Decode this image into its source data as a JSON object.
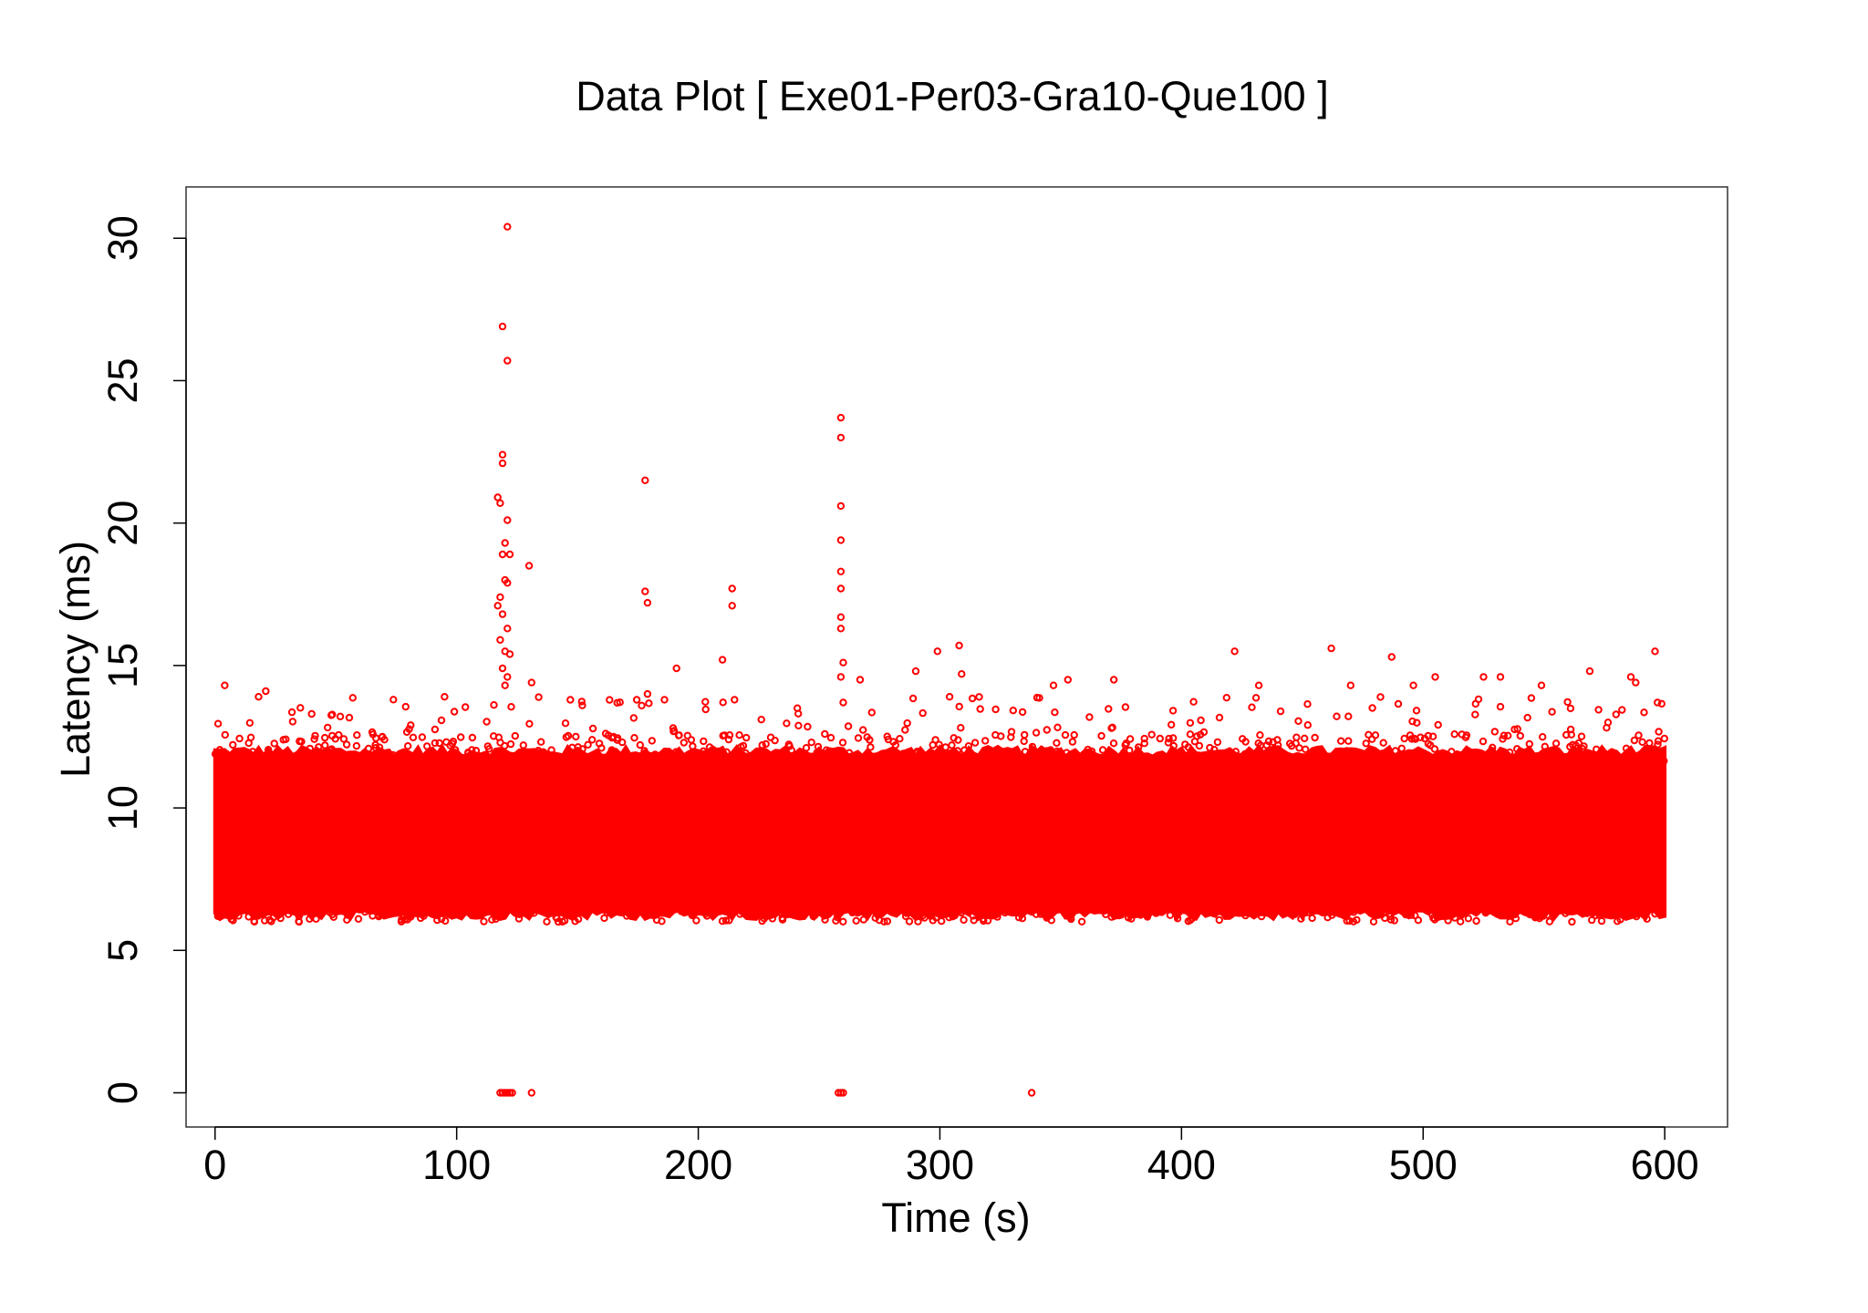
{
  "chart_data": {
    "type": "scatter",
    "title": "Data Plot [ Exe01-Per03-Gra10-Que100 ]",
    "xlabel": "Time (s)",
    "ylabel": "Latency (ms)",
    "xlim": [
      -12,
      626
    ],
    "ylim": [
      -1.2,
      31.8
    ],
    "xticks": [
      0,
      100,
      200,
      300,
      400,
      500,
      600
    ],
    "yticks": [
      0,
      5,
      10,
      15,
      20,
      25,
      30
    ],
    "grid": false,
    "legend": "none",
    "marker": "open-circle",
    "color": "#ff0000",
    "series": [
      {
        "description": "dense band of samples",
        "x_range": [
          0,
          600
        ],
        "band_core": [
          6.6,
          11.4
        ],
        "band_outer": [
          6.0,
          12.6
        ]
      }
    ],
    "outliers": [
      {
        "x": 121,
        "y": 30.4
      },
      {
        "x": 119,
        "y": 26.9
      },
      {
        "x": 121,
        "y": 25.7
      },
      {
        "x": 119,
        "y": 22.4
      },
      {
        "x": 119,
        "y": 22.1
      },
      {
        "x": 117,
        "y": 20.9
      },
      {
        "x": 118,
        "y": 20.7
      },
      {
        "x": 121,
        "y": 20.1
      },
      {
        "x": 120,
        "y": 19.3
      },
      {
        "x": 119,
        "y": 18.9
      },
      {
        "x": 122,
        "y": 18.9
      },
      {
        "x": 120,
        "y": 18.0
      },
      {
        "x": 121,
        "y": 17.9
      },
      {
        "x": 118,
        "y": 17.4
      },
      {
        "x": 117,
        "y": 17.1
      },
      {
        "x": 119,
        "y": 16.8
      },
      {
        "x": 121,
        "y": 16.3
      },
      {
        "x": 118,
        "y": 15.9
      },
      {
        "x": 120,
        "y": 15.5
      },
      {
        "x": 122,
        "y": 15.4
      },
      {
        "x": 119,
        "y": 14.9
      },
      {
        "x": 121,
        "y": 14.6
      },
      {
        "x": 120,
        "y": 14.3
      },
      {
        "x": 130,
        "y": 18.5
      },
      {
        "x": 131,
        "y": 14.4
      },
      {
        "x": 178,
        "y": 21.5
      },
      {
        "x": 178,
        "y": 17.6
      },
      {
        "x": 179,
        "y": 17.2
      },
      {
        "x": 179,
        "y": 14.0
      },
      {
        "x": 191,
        "y": 14.9
      },
      {
        "x": 210,
        "y": 15.2
      },
      {
        "x": 214,
        "y": 17.7
      },
      {
        "x": 214,
        "y": 17.1
      },
      {
        "x": 215,
        "y": 13.8
      },
      {
        "x": 259,
        "y": 23.7
      },
      {
        "x": 259,
        "y": 23.0
      },
      {
        "x": 259,
        "y": 20.6
      },
      {
        "x": 259,
        "y": 19.4
      },
      {
        "x": 259,
        "y": 18.3
      },
      {
        "x": 259,
        "y": 17.7
      },
      {
        "x": 259,
        "y": 16.7
      },
      {
        "x": 259,
        "y": 16.3
      },
      {
        "x": 260,
        "y": 15.1
      },
      {
        "x": 259,
        "y": 14.6
      },
      {
        "x": 260,
        "y": 13.7
      },
      {
        "x": 4,
        "y": 14.3
      },
      {
        "x": 18,
        "y": 13.9
      },
      {
        "x": 21,
        "y": 14.1
      },
      {
        "x": 40,
        "y": 13.3
      },
      {
        "x": 95,
        "y": 13.9
      },
      {
        "x": 152,
        "y": 13.6
      },
      {
        "x": 186,
        "y": 13.8
      },
      {
        "x": 241,
        "y": 13.5
      },
      {
        "x": 267,
        "y": 14.5
      },
      {
        "x": 290,
        "y": 14.8
      },
      {
        "x": 299,
        "y": 15.5
      },
      {
        "x": 308,
        "y": 15.7
      },
      {
        "x": 309,
        "y": 14.7
      },
      {
        "x": 304,
        "y": 13.9
      },
      {
        "x": 347,
        "y": 14.3
      },
      {
        "x": 353,
        "y": 14.5
      },
      {
        "x": 372,
        "y": 14.5
      },
      {
        "x": 422,
        "y": 15.5
      },
      {
        "x": 432,
        "y": 14.3
      },
      {
        "x": 462,
        "y": 15.6
      },
      {
        "x": 470,
        "y": 14.3
      },
      {
        "x": 487,
        "y": 15.3
      },
      {
        "x": 496,
        "y": 14.3
      },
      {
        "x": 505,
        "y": 14.6
      },
      {
        "x": 525,
        "y": 14.6
      },
      {
        "x": 532,
        "y": 14.6
      },
      {
        "x": 549,
        "y": 14.3
      },
      {
        "x": 569,
        "y": 14.8
      },
      {
        "x": 586,
        "y": 14.6
      },
      {
        "x": 588,
        "y": 14.4
      },
      {
        "x": 596,
        "y": 15.5
      },
      {
        "x": 597,
        "y": 13.7
      },
      {
        "x": 118,
        "y": 0
      },
      {
        "x": 119,
        "y": 0
      },
      {
        "x": 120,
        "y": 0
      },
      {
        "x": 121,
        "y": 0
      },
      {
        "x": 122,
        "y": 0
      },
      {
        "x": 123,
        "y": 0
      },
      {
        "x": 131,
        "y": 0
      },
      {
        "x": 258,
        "y": 0
      },
      {
        "x": 259,
        "y": 0
      },
      {
        "x": 260,
        "y": 0
      },
      {
        "x": 338,
        "y": 0
      }
    ]
  }
}
